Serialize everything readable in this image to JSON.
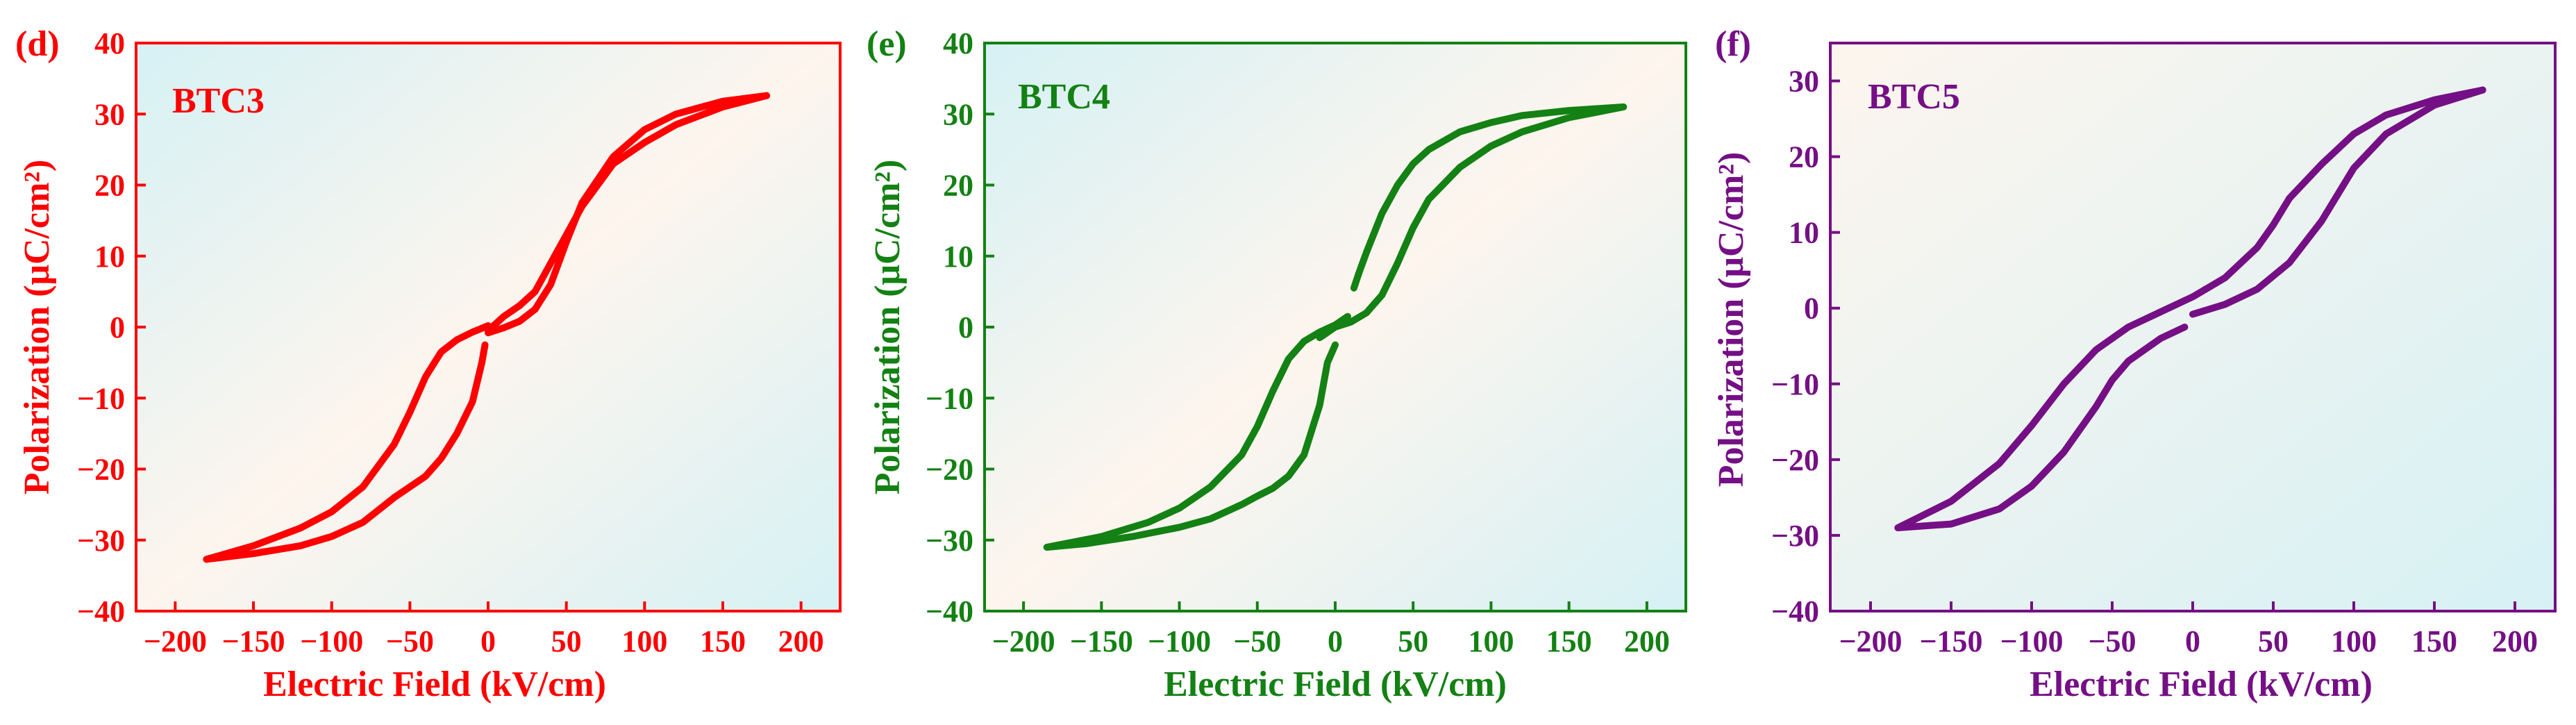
{
  "chart_data": [
    {
      "panel": "(d)",
      "type": "line",
      "label": "BTC3",
      "color": "#ff0000",
      "xlabel": "Electric Field (kV/cm)",
      "ylabel": "Polarization (μC/cm²)",
      "xlim": [
        -225,
        225
      ],
      "ylim": [
        -40,
        40
      ],
      "xticks": [
        -200,
        -150,
        -100,
        -50,
        0,
        50,
        100,
        150,
        200
      ],
      "yticks": [
        -40,
        -30,
        -20,
        -10,
        0,
        10,
        20,
        30,
        40
      ],
      "background": [
        "#d6f1f4",
        "#fdf5ee",
        "#d6f1f4"
      ],
      "loops": [
        {
          "x": [
            0,
            10,
            20,
            30,
            40,
            50,
            60,
            80,
            100,
            120,
            150,
            178
          ],
          "y": [
            -0.8,
            -0.1,
            0.8,
            2.5,
            6,
            12,
            17.5,
            24,
            27.8,
            30,
            31.8,
            32.6
          ]
        },
        {
          "x": [
            178,
            150,
            120,
            100,
            80,
            60,
            50,
            40,
            30,
            20,
            10,
            5,
            0
          ],
          "y": [
            32.6,
            31,
            28.5,
            26,
            23,
            17,
            13,
            9,
            5,
            3,
            1.5,
            0.5,
            -0.5
          ]
        },
        {
          "x": [
            -2,
            -4,
            -10,
            -20,
            -30,
            -40,
            -50,
            -60,
            -80,
            -100,
            -120,
            -150,
            -180
          ],
          "y": [
            -2.5,
            -5,
            -10.5,
            -15,
            -18.5,
            -21,
            -22.5,
            -24,
            -27.5,
            -29.5,
            -30.8,
            -31.9,
            -32.7
          ]
        },
        {
          "x": [
            -180,
            -150,
            -120,
            -100,
            -80,
            -60,
            -50,
            -40,
            -30,
            -20,
            -10,
            0
          ],
          "y": [
            -32.7,
            -30.8,
            -28.3,
            -26,
            -22.5,
            -16.5,
            -12,
            -7,
            -3.5,
            -1.8,
            -0.7,
            0.2
          ]
        }
      ]
    },
    {
      "panel": "(e)",
      "type": "line",
      "label": "BTC4",
      "color": "#138113",
      "xlabel": "Electric Field (kV/cm)",
      "ylabel": "Polarization (μC/cm²)",
      "xlim": [
        -225,
        225
      ],
      "ylim": [
        -40,
        40
      ],
      "xticks": [
        -200,
        -150,
        -100,
        -50,
        0,
        50,
        100,
        150,
        200
      ],
      "yticks": [
        -40,
        -30,
        -20,
        -10,
        0,
        10,
        20,
        30,
        40
      ],
      "background": [
        "#d6f1f4",
        "#fdf5ee",
        "#d6f1f4"
      ],
      "loops": [
        {
          "x": [
            12,
            15,
            20,
            30,
            40,
            50,
            60,
            80,
            100,
            120,
            150,
            185
          ],
          "y": [
            5.5,
            7.5,
            10.5,
            16,
            20,
            23,
            25,
            27.5,
            28.8,
            29.8,
            30.5,
            31
          ]
        },
        {
          "x": [
            185,
            150,
            120,
            100,
            80,
            60,
            50,
            40,
            30,
            20,
            10,
            0,
            -10
          ],
          "y": [
            31,
            29.5,
            27.5,
            25.5,
            22.5,
            18,
            14,
            9,
            4.5,
            2,
            0.7,
            0,
            -1.5
          ]
        },
        {
          "x": [
            0,
            -5,
            -10,
            -20,
            -30,
            -40,
            -50,
            -60,
            -80,
            -100,
            -130,
            -160,
            -185
          ],
          "y": [
            -2.5,
            -5,
            -11,
            -18,
            -21,
            -22.7,
            -23.8,
            -25,
            -27,
            -28.2,
            -29.5,
            -30.5,
            -31
          ]
        },
        {
          "x": [
            -185,
            -150,
            -120,
            -100,
            -80,
            -60,
            -50,
            -40,
            -30,
            -20,
            -10,
            0,
            8
          ],
          "y": [
            -31,
            -29.5,
            -27.5,
            -25.5,
            -22.5,
            -18,
            -14,
            -9,
            -4.5,
            -2,
            -0.7,
            0.3,
            1.5
          ]
        }
      ]
    },
    {
      "panel": "(f)",
      "type": "line",
      "label": "BTC5",
      "color": "#750f85",
      "xlabel": "Electric Field (kV/cm)",
      "ylabel": "Polarization (μC/cm²)",
      "xlim": [
        -225,
        225
      ],
      "ylim": [
        -40,
        35
      ],
      "xticks": [
        -200,
        -150,
        -100,
        -50,
        0,
        50,
        100,
        150,
        200
      ],
      "yticks": [
        -40,
        -30,
        -20,
        -10,
        0,
        10,
        20,
        30
      ],
      "background": [
        "#fdf5ee",
        "#d6f1f4"
      ],
      "loops": [
        {
          "x": [
            0,
            20,
            40,
            60,
            80,
            100,
            120,
            150,
            180
          ],
          "y": [
            -0.8,
            0.5,
            2.5,
            6,
            11.5,
            18.5,
            23,
            26.8,
            28.8
          ]
        },
        {
          "x": [
            180,
            150,
            120,
            100,
            80,
            60,
            50,
            40,
            20,
            0,
            -20,
            -40,
            -60,
            -80,
            -100,
            -120,
            -150,
            -183
          ],
          "y": [
            28.8,
            27.5,
            25.5,
            23,
            19,
            14.5,
            11,
            8,
            4,
            1.5,
            -0.5,
            -2.5,
            -5.5,
            -10,
            -15.5,
            -20.5,
            -25.5,
            -29
          ]
        },
        {
          "x": [
            -183,
            -150,
            -120,
            -100,
            -80,
            -60,
            -50,
            -40,
            -20,
            -5
          ],
          "y": [
            -29,
            -28.5,
            -26.5,
            -23.5,
            -19,
            -13,
            -9.5,
            -7,
            -4,
            -2.5
          ]
        }
      ]
    }
  ]
}
